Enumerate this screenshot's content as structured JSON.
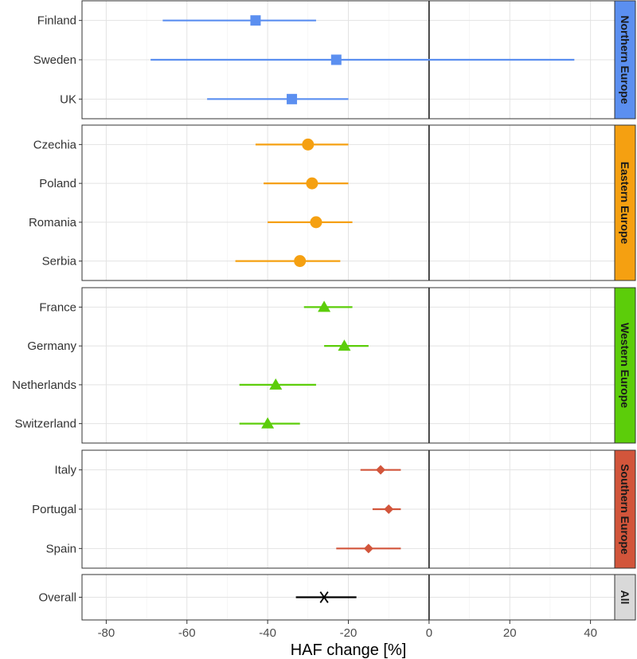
{
  "chart_data": {
    "type": "forest",
    "xlabel": "HAF change [%]",
    "xlim": [
      -86,
      46
    ],
    "xticks": [
      -80,
      -60,
      -40,
      -20,
      0,
      20,
      40
    ],
    "reference_line": 0,
    "grid": true,
    "panels": [
      {
        "name": "Northern Europe",
        "color": "#5b8ff0",
        "marker": "square",
        "rows": [
          {
            "label": "Finland",
            "estimate": -43,
            "lower": -66,
            "upper": -28
          },
          {
            "label": "Sweden",
            "estimate": -23,
            "lower": -69,
            "upper": 36
          },
          {
            "label": "UK",
            "estimate": -34,
            "lower": -55,
            "upper": -20
          }
        ]
      },
      {
        "name": "Eastern Europe",
        "color": "#f5a011",
        "marker": "circle",
        "rows": [
          {
            "label": "Czechia",
            "estimate": -30,
            "lower": -43,
            "upper": -20
          },
          {
            "label": "Poland",
            "estimate": -29,
            "lower": -41,
            "upper": -20
          },
          {
            "label": "Romania",
            "estimate": -28,
            "lower": -40,
            "upper": -19
          },
          {
            "label": "Serbia",
            "estimate": -32,
            "lower": -48,
            "upper": -22
          }
        ]
      },
      {
        "name": "Western Europe",
        "color": "#5ccd0a",
        "marker": "triangle",
        "rows": [
          {
            "label": "France",
            "estimate": -26,
            "lower": -31,
            "upper": -19
          },
          {
            "label": "Germany",
            "estimate": -21,
            "lower": -26,
            "upper": -15
          },
          {
            "label": "Netherlands",
            "estimate": -38,
            "lower": -47,
            "upper": -28
          },
          {
            "label": "Switzerland",
            "estimate": -40,
            "lower": -47,
            "upper": -32
          }
        ]
      },
      {
        "name": "Southern Europe",
        "color": "#d2553b",
        "marker": "diamond",
        "rows": [
          {
            "label": "Italy",
            "estimate": -12,
            "lower": -17,
            "upper": -7
          },
          {
            "label": "Portugal",
            "estimate": -10,
            "lower": -14,
            "upper": -7
          },
          {
            "label": "Spain",
            "estimate": -15,
            "lower": -23,
            "upper": -7
          }
        ]
      },
      {
        "name": "All",
        "color": "#000000",
        "strip_color": "#d9d9d9",
        "marker": "asterisk",
        "rows": [
          {
            "label": "Overall",
            "estimate": -26,
            "lower": -33,
            "upper": -18
          }
        ]
      }
    ]
  }
}
